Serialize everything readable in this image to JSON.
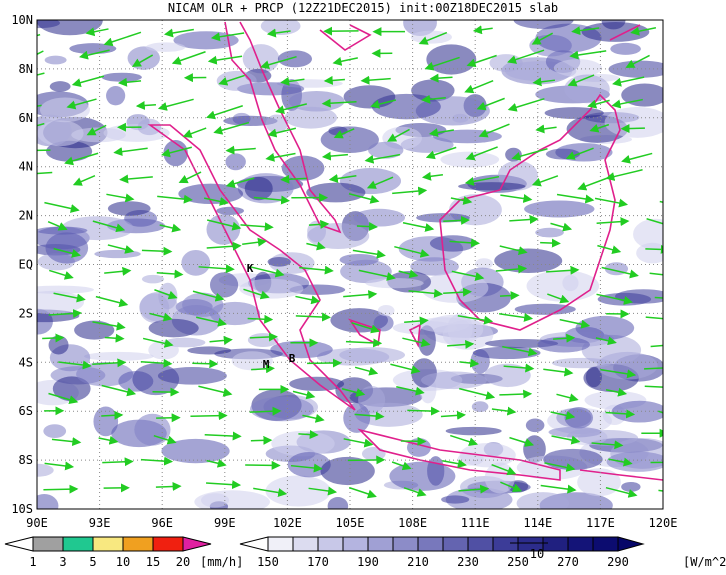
{
  "title": "NICAM OLR + PRCP (12Z21DEC2015) init:00Z18DEC2015 slab",
  "lon_labels": [
    "90E",
    "93E",
    "96E",
    "99E",
    "102E",
    "105E",
    "108E",
    "111E",
    "114E",
    "117E",
    "120E"
  ],
  "lat_labels": [
    "10N",
    "8N",
    "6N",
    "4N",
    "2N",
    "EQ",
    "2S",
    "4S",
    "6S",
    "8S",
    "10S"
  ],
  "markers": [
    "K",
    "M",
    "B"
  ],
  "precip_scale": {
    "labels": [
      1,
      3,
      5,
      10,
      15,
      20
    ],
    "unit": "[mm/h]",
    "colors": [
      "#ffffff",
      "#a0a0a0",
      "#20c890",
      "#f8e880",
      "#f0a020",
      "#f02010",
      "#e020a0"
    ]
  },
  "olr_scale": {
    "labels": [
      150,
      170,
      190,
      210,
      230,
      250,
      270,
      290
    ],
    "unit": "[W/m^2]",
    "colors": [
      "#ffffff",
      "#f0f0f8",
      "#dcdcf0",
      "#c8c8e8",
      "#b4b4e0",
      "#a0a0d4",
      "#8c8cc8",
      "#7878bc",
      "#6464b0",
      "#5050a4",
      "#3c3c98",
      "#2c2c8c",
      "#202080",
      "#141478",
      "#0c0c70",
      "#060668"
    ]
  },
  "vector_reference": "10"
}
